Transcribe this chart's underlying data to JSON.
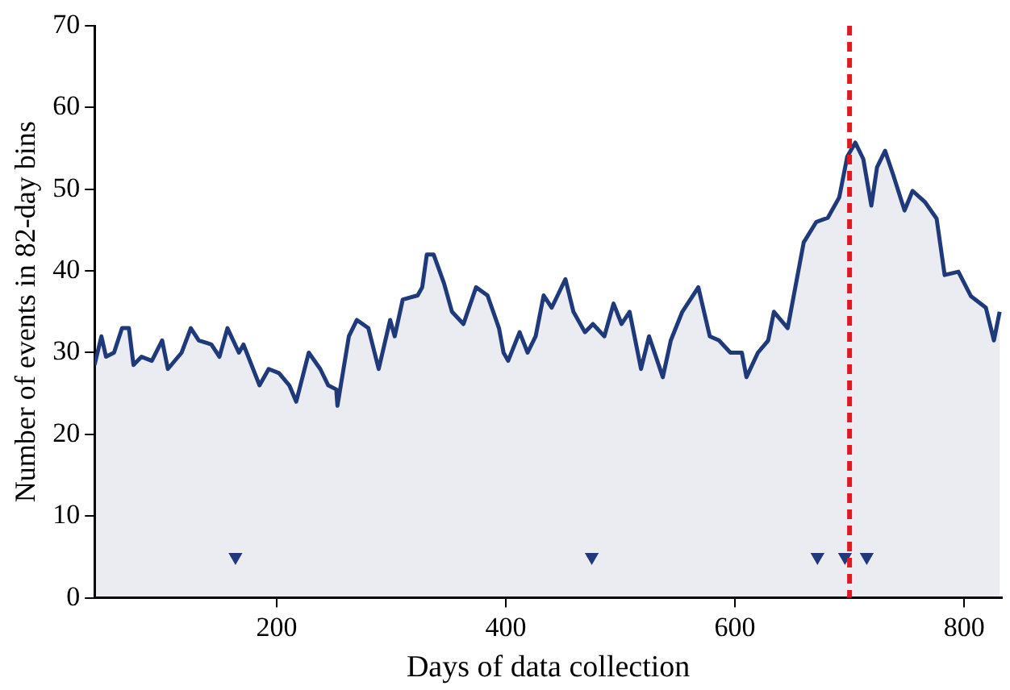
{
  "chart_data": {
    "type": "area",
    "xlabel": "Days of data collection",
    "ylabel": "Number of events in 82-day bins",
    "xlim": [
      41,
      833
    ],
    "xticks": [
      200,
      400,
      600,
      800
    ],
    "ylim": [
      0,
      70
    ],
    "yticks": [
      0,
      10,
      20,
      30,
      40,
      50,
      60,
      70
    ],
    "grid": false,
    "legend": false,
    "series": [
      {
        "type": "area",
        "color": "#1f3a7a",
        "x": [
          41,
          47,
          51,
          58,
          65,
          71,
          75,
          82,
          91,
          100,
          105,
          117,
          125,
          132,
          143,
          150,
          157,
          167,
          171,
          185,
          193,
          202,
          211,
          217,
          228,
          238,
          245,
          252,
          253,
          263,
          270,
          280,
          289,
          299,
          303,
          310,
          323,
          327,
          331,
          337,
          346,
          353,
          363,
          374,
          384,
          394,
          398,
          402,
          412,
          419,
          426,
          433,
          440,
          452,
          459,
          469,
          476,
          486,
          494,
          501,
          508,
          518,
          525,
          537,
          544,
          554,
          568,
          578,
          586,
          596,
          606,
          610,
          620,
          629,
          634,
          646,
          660,
          671,
          681,
          691,
          698,
          705,
          712,
          719,
          724,
          731,
          738,
          748,
          755,
          766,
          776,
          783,
          795,
          806,
          819,
          826,
          831
        ],
        "values": [
          28.5,
          32,
          29.5,
          30,
          33,
          33,
          28.5,
          29.5,
          29,
          31.5,
          28,
          30,
          33,
          31.5,
          31,
          29.5,
          33,
          30,
          31,
          26,
          28,
          27.5,
          26,
          24,
          30,
          28,
          26,
          25.5,
          23.5,
          32,
          34,
          33,
          28,
          34,
          32,
          36.5,
          37,
          38,
          42,
          42,
          38.5,
          35,
          33.5,
          38,
          37,
          33,
          30,
          29,
          32.5,
          30,
          32,
          37,
          35.5,
          39,
          35,
          32.5,
          33.5,
          32,
          36,
          33.5,
          35,
          28,
          32,
          27,
          31.5,
          35,
          38,
          32,
          31.5,
          30,
          30,
          27,
          30,
          31.5,
          35,
          33,
          43.5,
          46,
          46.5,
          49,
          54,
          55.7,
          53.7,
          48,
          52.7,
          54.7,
          51.8,
          47.4,
          49.8,
          48.4,
          46.4,
          39.5,
          39.9,
          36.9,
          35.5,
          31.5,
          35
        ]
      },
      {
        "type": "scatter",
        "color": "#1f3a7a",
        "marker": "triangle",
        "x": [
          164,
          475,
          672,
          696,
          715
        ],
        "values": [
          5,
          5,
          5,
          5,
          5
        ]
      }
    ],
    "ref_lines": [
      {
        "axis": "x",
        "value": 700,
        "color": "#e31a1c",
        "line_style": "dashed"
      }
    ]
  }
}
